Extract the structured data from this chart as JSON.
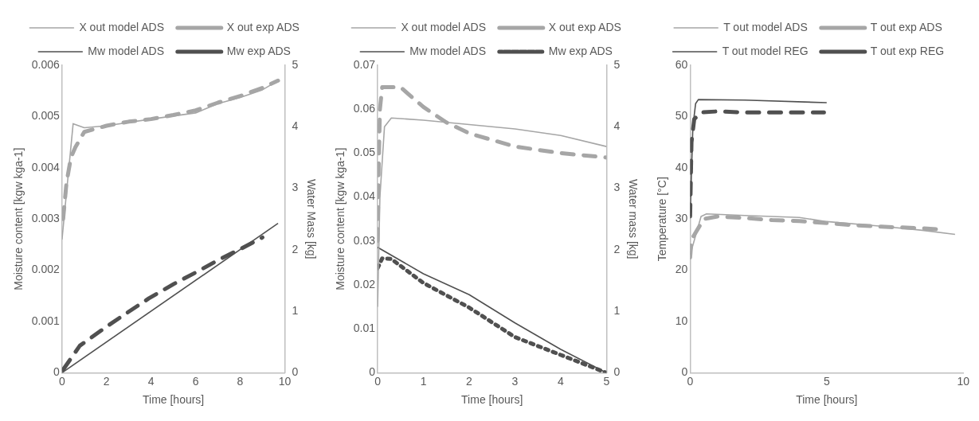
{
  "chart_data": [
    {
      "type": "line",
      "xlabel": "Time [hours]",
      "ylabel": "Moisture content [kgw kga-1]",
      "y2label": "Water Mass [kg]",
      "xlim": [
        0,
        10
      ],
      "xticks": [
        0,
        2,
        4,
        6,
        8,
        10
      ],
      "ylim": [
        0,
        0.006
      ],
      "yticks": [
        0,
        0.001,
        0.002,
        0.003,
        0.004,
        0.005,
        0.006
      ],
      "y2lim": [
        0,
        5
      ],
      "y2ticks": [
        0,
        1,
        2,
        3,
        4,
        5
      ],
      "legend": "top",
      "series": [
        {
          "name": "X out model ADS",
          "color": "#a6a6a6",
          "line_style": "solid",
          "x": [
            0,
            0.5,
            1,
            2,
            4,
            6,
            7,
            8,
            9,
            9.7
          ],
          "values": [
            0.0026,
            0.00486,
            0.00478,
            0.00482,
            0.00495,
            0.00507,
            0.00525,
            0.00537,
            0.00552,
            0.0057
          ]
        },
        {
          "name": "X out exp ADS",
          "color": "#a6a6a6",
          "line_style": "dashed",
          "x": [
            0.05,
            0.2,
            0.4,
            0.6,
            1,
            2,
            3,
            4,
            5,
            6,
            7,
            8,
            9,
            9.7
          ],
          "values": [
            0.003,
            0.0037,
            0.0042,
            0.0044,
            0.0047,
            0.00482,
            0.0049,
            0.00495,
            0.00503,
            0.00512,
            0.00527,
            0.0054,
            0.00556,
            0.0057
          ]
        },
        {
          "name": "Mw model ADS",
          "color": "#505050",
          "line_style": "solid",
          "axis": "y2",
          "x": [
            0,
            9.7
          ],
          "values": [
            0,
            2.43
          ]
        },
        {
          "name": "Mw exp ADS",
          "color": "#505050",
          "line_style": "dashed",
          "axis": "y2",
          "x": [
            0.05,
            0.8,
            2,
            2.9,
            3.9,
            5,
            6,
            7,
            8,
            9
          ],
          "values": [
            0.05,
            0.44,
            0.75,
            0.97,
            1.21,
            1.44,
            1.63,
            1.83,
            2.01,
            2.2
          ]
        }
      ]
    },
    {
      "type": "line",
      "xlabel": "Time [hours]",
      "ylabel": "Moisture content [kgw kga-1]",
      "y2label": "Water mass [kg]",
      "xlim": [
        0,
        5
      ],
      "xticks": [
        0,
        1,
        2,
        3,
        4,
        5
      ],
      "ylim": [
        0,
        0.07
      ],
      "yticks": [
        0,
        0.01,
        0.02,
        0.03,
        0.04,
        0.05,
        0.06,
        0.07
      ],
      "y2lim": [
        0,
        5
      ],
      "y2ticks": [
        0,
        1,
        2,
        3,
        4,
        5
      ],
      "legend": "top",
      "series": [
        {
          "name": "X out model ADS",
          "color": "#a6a6a6",
          "line_style": "solid",
          "x": [
            0,
            0.05,
            0.15,
            0.3,
            1,
            2,
            3,
            4,
            5
          ],
          "values": [
            0.015,
            0.04,
            0.056,
            0.058,
            0.0575,
            0.0565,
            0.0555,
            0.054,
            0.0515
          ]
        },
        {
          "name": "X out exp ADS",
          "color": "#a6a6a6",
          "line_style": "dashed",
          "x": [
            0,
            0.02,
            0.05,
            0.1,
            0.5,
            1,
            1.5,
            2,
            2.5,
            3,
            4,
            5
          ],
          "values": [
            0.03,
            0.045,
            0.06,
            0.065,
            0.065,
            0.0605,
            0.057,
            0.0545,
            0.053,
            0.0515,
            0.05,
            0.049
          ]
        },
        {
          "name": "Mw model ADS",
          "color": "#505050",
          "line_style": "solid",
          "axis": "y2",
          "x": [
            0,
            1,
            2,
            3,
            4,
            5
          ],
          "values": [
            2.04,
            1.61,
            1.27,
            0.81,
            0.38,
            0
          ]
        },
        {
          "name": "Mw exp ADS",
          "color": "#505050",
          "line_style": "dotted",
          "axis": "y2",
          "x": [
            0,
            0.1,
            0.3,
            1,
            2,
            3,
            4,
            5
          ],
          "values": [
            1.7,
            1.86,
            1.85,
            1.46,
            1.06,
            0.58,
            0.29,
            0
          ]
        }
      ]
    },
    {
      "type": "line",
      "xlabel": "Time [hours]",
      "ylabel": "Temperature [°C]",
      "xlim": [
        0,
        10
      ],
      "xticks": [
        0,
        5,
        10
      ],
      "ylim": [
        0,
        60
      ],
      "yticks": [
        0,
        10,
        20,
        30,
        40,
        50,
        60
      ],
      "legend": "top",
      "series": [
        {
          "name": "T out model ADS",
          "color": "#a6a6a6",
          "line_style": "solid",
          "x": [
            0,
            0.4,
            0.6,
            2,
            4,
            5,
            7,
            8.5,
            9.7
          ],
          "values": [
            23,
            30.5,
            31,
            30.7,
            30.3,
            29.5,
            28.6,
            27.8,
            27
          ]
        },
        {
          "name": "T out exp ADS",
          "color": "#a6a6a6",
          "line_style": "dashed",
          "x": [
            0,
            0.05,
            0.5,
            1,
            2,
            3,
            4,
            5,
            6,
            7,
            8.5,
            9
          ],
          "values": [
            22.5,
            26,
            30,
            30.5,
            30.2,
            29.8,
            29.6,
            29.2,
            28.8,
            28.5,
            28.2,
            28
          ]
        },
        {
          "name": "T out model REG",
          "color": "#505050",
          "line_style": "solid",
          "x": [
            0,
            0.1,
            0.2,
            0.3,
            2,
            5
          ],
          "values": [
            30.5,
            48,
            52.5,
            53.3,
            53.2,
            52.7
          ]
        },
        {
          "name": "T out exp REG",
          "color": "#505050",
          "line_style": "dashed",
          "x": [
            0,
            0.05,
            0.15,
            0.4,
            1,
            2,
            3,
            4,
            4.9
          ],
          "values": [
            30.5,
            45,
            49.5,
            50.8,
            51,
            50.8,
            50.8,
            50.8,
            50.8
          ]
        }
      ]
    }
  ]
}
